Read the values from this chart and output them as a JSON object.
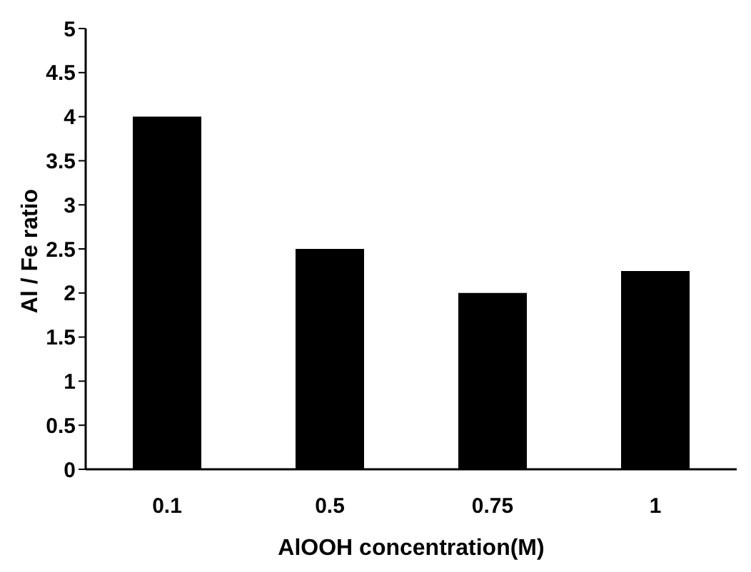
{
  "chart_data": {
    "type": "bar",
    "xlabel": "AlOOH concentration(M)",
    "ylabel": "Al / Fe ratio",
    "categories": [
      "0.1",
      "0.5",
      "0.75",
      "1"
    ],
    "values": [
      4,
      2.5,
      2,
      2.25
    ],
    "color": "#000000",
    "ylim": [
      0,
      5
    ],
    "yticks": [
      0,
      0.5,
      1,
      1.5,
      2,
      2.5,
      3,
      3.5,
      4,
      4.5,
      5
    ],
    "grid": false,
    "legend": false
  }
}
